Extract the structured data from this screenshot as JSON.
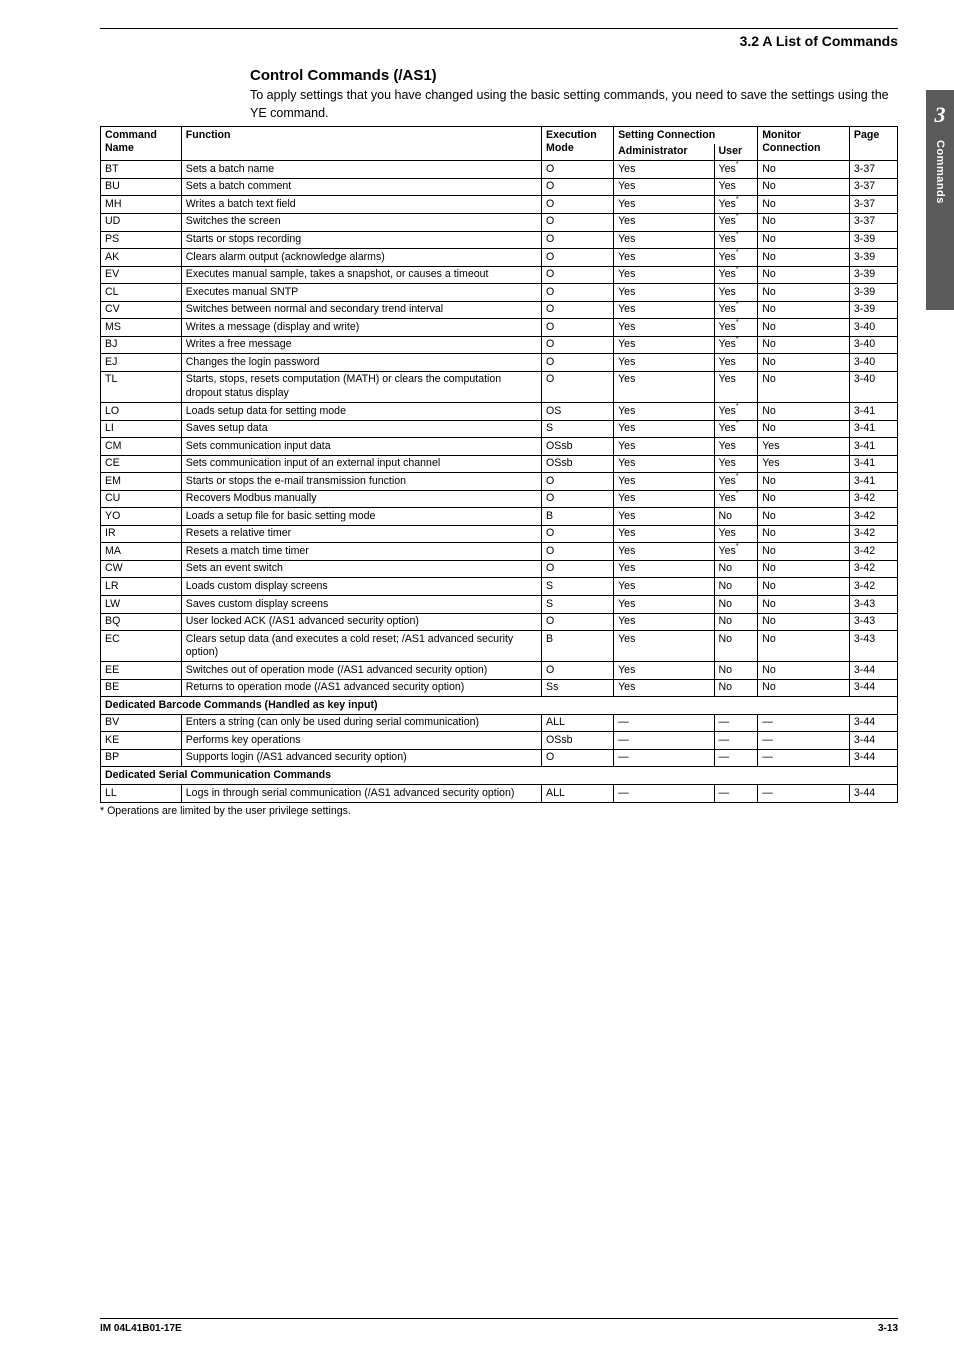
{
  "header": {
    "section_label": "3.2  A List of Commands",
    "title": "Control Commands (/AS1)",
    "intro": "To apply settings that you have changed using the basic setting commands, you need to save the settings using the YE command."
  },
  "side_tab": {
    "number": "3",
    "label": "Commands",
    "bg_color": "#5a5a5a",
    "text_color": "#ffffff"
  },
  "table": {
    "columns": {
      "name_h1": "Command",
      "name_h2": "Name",
      "func_h": "Function",
      "exec_h1": "Execution",
      "exec_h2": "Mode",
      "setting_h": "Setting Connection",
      "admin_h": "Administrator",
      "user_h": "User",
      "mon_h1": "Monitor",
      "mon_h2": "Connection",
      "page_h": "Page"
    },
    "rows": [
      {
        "n": "BT",
        "f": "Sets a batch name",
        "e": "O",
        "a": "Yes",
        "u": "Yes*",
        "m": "No",
        "p": "3-37"
      },
      {
        "n": "BU",
        "f": "Sets a batch comment",
        "e": "O",
        "a": "Yes",
        "u": "Yes",
        "m": "No",
        "p": "3-37"
      },
      {
        "n": "MH",
        "f": "Writes a batch text field",
        "e": "O",
        "a": "Yes",
        "u": "Yes*",
        "m": "No",
        "p": "3-37"
      },
      {
        "n": "UD",
        "f": "Switches the screen",
        "e": "O",
        "a": "Yes",
        "u": "Yes*",
        "m": "No",
        "p": "3-37"
      },
      {
        "n": "PS",
        "f": "Starts or stops recording",
        "e": "O",
        "a": "Yes",
        "u": "Yes*",
        "m": "No",
        "p": "3-39"
      },
      {
        "n": "AK",
        "f": "Clears alarm output (acknowledge alarms)",
        "e": "O",
        "a": "Yes",
        "u": "Yes*",
        "m": "No",
        "p": "3-39"
      },
      {
        "n": "EV",
        "f": "Executes manual sample, takes a snapshot, or causes a timeout",
        "e": "O",
        "a": "Yes",
        "u": "Yes*",
        "m": "No",
        "p": "3-39"
      },
      {
        "n": "CL",
        "f": "Executes manual SNTP",
        "e": "O",
        "a": "Yes",
        "u": "Yes",
        "m": "No",
        "p": "3-39"
      },
      {
        "n": "CV",
        "f": "Switches between normal and secondary trend interval",
        "e": "O",
        "a": "Yes",
        "u": "Yes*",
        "m": "No",
        "p": "3-39"
      },
      {
        "n": "MS",
        "f": "Writes a message (display and write)",
        "e": "O",
        "a": "Yes",
        "u": "Yes*",
        "m": "No",
        "p": "3-40"
      },
      {
        "n": "BJ",
        "f": "Writes a free message",
        "e": "O",
        "a": "Yes",
        "u": "Yes*",
        "m": "No",
        "p": "3-40"
      },
      {
        "n": "EJ",
        "f": "Changes the login password",
        "e": "O",
        "a": "Yes",
        "u": "Yes",
        "m": "No",
        "p": "3-40"
      },
      {
        "n": "TL",
        "f": "Starts, stops, resets computation (MATH) or clears the computation dropout status display",
        "e": "O",
        "a": "Yes",
        "u": "Yes",
        "m": "No",
        "p": "3-40"
      },
      {
        "n": "LO",
        "f": "Loads setup data for setting mode",
        "e": "OS",
        "a": "Yes",
        "u": "Yes*",
        "m": "No",
        "p": "3-41"
      },
      {
        "n": "LI",
        "f": "Saves setup data",
        "e": "S",
        "a": "Yes",
        "u": "Yes*",
        "m": "No",
        "p": "3-41"
      },
      {
        "n": "CM",
        "f": "Sets communication input data",
        "e": "OSsb",
        "a": "Yes",
        "u": "Yes",
        "m": "Yes",
        "p": "3-41"
      },
      {
        "n": "CE",
        "f": "Sets communication input of an external input channel",
        "e": "OSsb",
        "a": "Yes",
        "u": "Yes",
        "m": "Yes",
        "p": "3-41"
      },
      {
        "n": "EM",
        "f": "Starts or stops the e-mail transmission function",
        "e": "O",
        "a": "Yes",
        "u": "Yes*",
        "m": "No",
        "p": "3-41"
      },
      {
        "n": "CU",
        "f": "Recovers Modbus manually",
        "e": "O",
        "a": "Yes",
        "u": "Yes*",
        "m": "No",
        "p": "3-42"
      },
      {
        "n": "YO",
        "f": "Loads a setup file for basic setting mode",
        "e": "B",
        "a": "Yes",
        "u": "No",
        "m": "No",
        "p": "3-42"
      },
      {
        "n": "IR",
        "f": "Resets a relative timer",
        "e": "O",
        "a": "Yes",
        "u": "Yes",
        "m": "No",
        "p": "3-42"
      },
      {
        "n": "MA",
        "f": "Resets a match time timer",
        "e": "O",
        "a": "Yes",
        "u": "Yes*",
        "m": "No",
        "p": "3-42"
      },
      {
        "n": "CW",
        "f": "Sets an event switch",
        "e": "O",
        "a": "Yes",
        "u": "No",
        "m": "No",
        "p": "3-42"
      },
      {
        "n": "LR",
        "f": "Loads custom display screens",
        "e": "S",
        "a": "Yes",
        "u": "No",
        "m": "No",
        "p": "3-42"
      },
      {
        "n": "LW",
        "f": "Saves custom display screens",
        "e": "S",
        "a": "Yes",
        "u": "No",
        "m": "No",
        "p": "3-43"
      },
      {
        "n": "BQ",
        "f": "User locked ACK (/AS1 advanced security option)",
        "e": "O",
        "a": "Yes",
        "u": "No",
        "m": "No",
        "p": "3-43"
      },
      {
        "n": "EC",
        "f": "Clears setup data (and executes a cold reset; /AS1 advanced security option)",
        "e": "B",
        "a": "Yes",
        "u": "No",
        "m": "No",
        "p": "3-43"
      },
      {
        "n": "EE",
        "f": "Switches out of operation mode (/AS1 advanced security option)",
        "e": "O",
        "a": "Yes",
        "u": "No",
        "m": "No",
        "p": "3-44"
      },
      {
        "n": "BE",
        "f": "Returns to operation mode (/AS1 advanced security option)",
        "e": "Ss",
        "a": "Yes",
        "u": "No",
        "m": "No",
        "p": "3-44"
      }
    ],
    "section1": "Dedicated Barcode Commands (Handled as key input)",
    "rows_s1": [
      {
        "n": "BV",
        "f": "Enters a string (can only be used during serial communication)",
        "e": "ALL",
        "a": "—",
        "u": "—",
        "m": "—",
        "p": "3-44"
      },
      {
        "n": "KE",
        "f": "Performs key operations",
        "e": "OSsb",
        "a": "—",
        "u": "—",
        "m": "—",
        "p": "3-44"
      },
      {
        "n": "BP",
        "f": "Supports login (/AS1 advanced security option)",
        "e": "O",
        "a": "—",
        "u": "—",
        "m": "—",
        "p": "3-44"
      }
    ],
    "section2": "Dedicated Serial Communication Commands",
    "rows_s2": [
      {
        "n": "LL",
        "f": "Logs in through serial communication (/AS1 advanced security option)",
        "e": "ALL",
        "a": "—",
        "u": "—",
        "m": "—",
        "p": "3-44"
      }
    ]
  },
  "footnote": "*  Operations are limited by the user privilege settings.",
  "footer": {
    "left": "IM 04L41B01-17E",
    "right": "3-13"
  }
}
